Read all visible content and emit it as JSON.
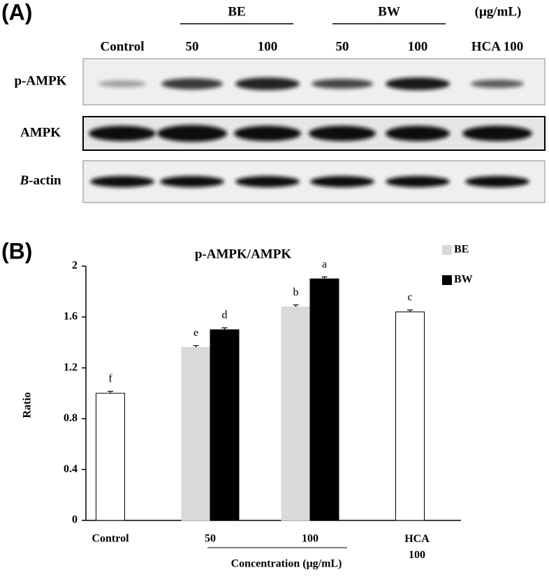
{
  "panel_a": {
    "label": "(A)",
    "groups": [
      "BE",
      "BW"
    ],
    "unit": "(μg/mL)",
    "lanes": [
      "Control",
      "50",
      "100",
      "50",
      "100",
      "HCA 100"
    ],
    "rows": [
      {
        "label": "p-AMPK"
      },
      {
        "label": "AMPK"
      },
      {
        "italic": "B",
        "label": "-actin"
      }
    ]
  },
  "panel_b": {
    "label": "(B)"
  },
  "chart_data": {
    "type": "bar",
    "title": "p-AMPK/AMPK",
    "ylabel": "Ratio",
    "xlabel": "Concentration (μg/mL)",
    "categories": [
      "Control",
      "50",
      "100",
      "HCA 100"
    ],
    "values": [
      1.0,
      null,
      null,
      1.64
    ],
    "errors": [
      0.015,
      null,
      null,
      0.015
    ],
    "letters": [
      "f",
      null,
      null,
      "c"
    ],
    "color": "#ffffff",
    "series": [
      {
        "name": "BE",
        "color": "#d9d9d9",
        "values": [
          null,
          1.36,
          1.68,
          null
        ],
        "errors": [
          null,
          0.015,
          0.015,
          null
        ],
        "letters": [
          null,
          "e",
          "b",
          null
        ]
      },
      {
        "name": "BW",
        "color": "#000000",
        "values": [
          null,
          1.5,
          1.9,
          null
        ],
        "errors": [
          null,
          0.015,
          0.015,
          null
        ],
        "letters": [
          null,
          "d",
          "a",
          null
        ]
      }
    ],
    "ylim": [
      0,
      2
    ],
    "yticks": [
      0,
      0.4,
      0.8,
      1.2,
      1.6,
      2
    ],
    "legend": "top-right",
    "grid": false
  }
}
